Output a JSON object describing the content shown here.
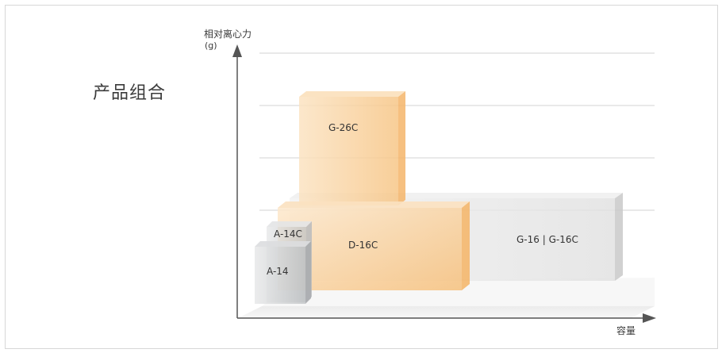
{
  "title": "产品组合",
  "axes": {
    "y_label": "相对离心力",
    "y_unit": "(g)",
    "x_label": "容量"
  },
  "products": [
    {
      "name": "A-14",
      "color": "#c9cccf"
    },
    {
      "name": "A-14C",
      "color": "#d5d7d9"
    },
    {
      "name": "D-16C",
      "color": "#f6c98d"
    },
    {
      "name": "G-26C",
      "color": "#f8cf95"
    },
    {
      "name": "G-16 | G-16C",
      "color": "#dcdcdc"
    }
  ],
  "colors": {
    "orange": "#f5b86a",
    "grey": "#c8c8c8",
    "axis": "#555555",
    "gridline": "#d0d0d0"
  }
}
